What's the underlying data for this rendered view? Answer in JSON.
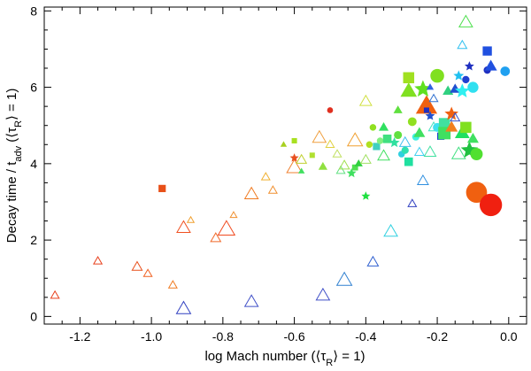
{
  "chart_data": {
    "type": "scatter",
    "title": "",
    "xlabel": "log Mach number (⟨τ_R⟩ = 1)",
    "ylabel": "Decay time / t_adv (⟨τ_R⟩ = 1)",
    "xlim": [
      -1.3,
      0.05
    ],
    "ylim": [
      -0.2,
      8.1
    ],
    "xticks": [
      -1.2,
      -1.0,
      -0.8,
      -0.6,
      -0.4,
      -0.2,
      0.0
    ],
    "xtick_labels": [
      "-1.2",
      "-1.0",
      "-0.8",
      "-0.6",
      "-0.4",
      "-0.2",
      "0.0"
    ],
    "yticks": [
      0,
      2,
      4,
      6,
      8
    ],
    "ytick_labels": [
      "0",
      "2",
      "4",
      "6",
      "8"
    ],
    "grid": false,
    "legend": "none",
    "marker_legend": {
      "triangle": "open triangle",
      "triangle_filled": "filled triangle",
      "square": "filled square",
      "circle": "filled circle",
      "star": "filled star"
    },
    "points": [
      {
        "x": -1.27,
        "y": 0.55,
        "shape": "triangle",
        "filled": false,
        "size": 1,
        "color": "#e8401c"
      },
      {
        "x": -1.15,
        "y": 1.45,
        "shape": "triangle",
        "filled": false,
        "size": 1,
        "color": "#e8401c"
      },
      {
        "x": -1.04,
        "y": 1.3,
        "shape": "triangle",
        "filled": false,
        "size": 1.2,
        "color": "#e8501c"
      },
      {
        "x": -1.01,
        "y": 1.12,
        "shape": "triangle",
        "filled": false,
        "size": 1,
        "color": "#f06020"
      },
      {
        "x": -0.94,
        "y": 0.82,
        "shape": "triangle",
        "filled": false,
        "size": 1,
        "color": "#f07a20"
      },
      {
        "x": -0.91,
        "y": 2.32,
        "shape": "triangle",
        "filled": false,
        "size": 1.6,
        "color": "#f05020"
      },
      {
        "x": -0.91,
        "y": 0.2,
        "shape": "triangle",
        "filled": false,
        "size": 1.7,
        "color": "#3040c0"
      },
      {
        "x": -0.97,
        "y": 3.35,
        "shape": "square",
        "filled": true,
        "size": 1,
        "color": "#e85018"
      },
      {
        "x": -0.89,
        "y": 2.52,
        "shape": "triangle",
        "filled": false,
        "size": 0.8,
        "color": "#f0a030"
      },
      {
        "x": -0.82,
        "y": 2.05,
        "shape": "triangle",
        "filled": false,
        "size": 1.2,
        "color": "#f06828"
      },
      {
        "x": -0.79,
        "y": 2.28,
        "shape": "triangle",
        "filled": false,
        "size": 2.0,
        "color": "#f04a20"
      },
      {
        "x": -0.77,
        "y": 2.65,
        "shape": "triangle",
        "filled": false,
        "size": 0.8,
        "color": "#f09030"
      },
      {
        "x": -0.72,
        "y": 3.2,
        "shape": "triangle",
        "filled": false,
        "size": 1.6,
        "color": "#f07a20"
      },
      {
        "x": -0.72,
        "y": 0.38,
        "shape": "triangle",
        "filled": false,
        "size": 1.6,
        "color": "#4050c8"
      },
      {
        "x": -0.68,
        "y": 3.65,
        "shape": "triangle",
        "filled": false,
        "size": 1,
        "color": "#f0b030"
      },
      {
        "x": -0.66,
        "y": 3.3,
        "shape": "triangle",
        "filled": false,
        "size": 1,
        "color": "#f09030"
      },
      {
        "x": -0.63,
        "y": 4.5,
        "shape": "triangle",
        "filled": true,
        "size": 0.6,
        "color": "#a8d020"
      },
      {
        "x": -0.6,
        "y": 3.9,
        "shape": "triangle",
        "filled": false,
        "size": 1.8,
        "color": "#f08030"
      },
      {
        "x": -0.6,
        "y": 4.15,
        "shape": "star",
        "filled": true,
        "size": 0.8,
        "color": "#e85020"
      },
      {
        "x": -0.6,
        "y": 4.6,
        "shape": "square",
        "filled": true,
        "size": 0.7,
        "color": "#a8e020"
      },
      {
        "x": -0.58,
        "y": 3.8,
        "shape": "triangle",
        "filled": true,
        "size": 0.6,
        "color": "#40e060"
      },
      {
        "x": -0.58,
        "y": 4.1,
        "shape": "triangle",
        "filled": false,
        "size": 1.2,
        "color": "#c0d030"
      },
      {
        "x": -0.55,
        "y": 4.22,
        "shape": "square",
        "filled": true,
        "size": 0.7,
        "color": "#b0e030"
      },
      {
        "x": -0.53,
        "y": 4.68,
        "shape": "triangle",
        "filled": false,
        "size": 1.6,
        "color": "#f0a040"
      },
      {
        "x": -0.52,
        "y": 3.92,
        "shape": "triangle",
        "filled": true,
        "size": 0.9,
        "color": "#90e040"
      },
      {
        "x": -0.52,
        "y": 0.55,
        "shape": "triangle",
        "filled": false,
        "size": 1.6,
        "color": "#4050c8"
      },
      {
        "x": -0.5,
        "y": 5.4,
        "shape": "circle",
        "filled": true,
        "size": 0.7,
        "color": "#e03020"
      },
      {
        "x": -0.5,
        "y": 4.5,
        "shape": "triangle",
        "filled": false,
        "size": 1,
        "color": "#e0d040"
      },
      {
        "x": -0.48,
        "y": 4.25,
        "shape": "triangle",
        "filled": false,
        "size": 1,
        "color": "#c0e060"
      },
      {
        "x": -0.47,
        "y": 3.82,
        "shape": "triangle",
        "filled": false,
        "size": 1,
        "color": "#60e080"
      },
      {
        "x": -0.46,
        "y": 3.95,
        "shape": "triangle",
        "filled": false,
        "size": 1.2,
        "color": "#a0e050"
      },
      {
        "x": -0.46,
        "y": 0.95,
        "shape": "triangle",
        "filled": false,
        "size": 1.8,
        "color": "#3080d0"
      },
      {
        "x": -0.44,
        "y": 3.75,
        "shape": "star",
        "filled": true,
        "size": 0.9,
        "color": "#40e060"
      },
      {
        "x": -0.43,
        "y": 3.9,
        "shape": "square",
        "filled": true,
        "size": 0.8,
        "color": "#50e050"
      },
      {
        "x": -0.43,
        "y": 4.6,
        "shape": "triangle",
        "filled": false,
        "size": 1.8,
        "color": "#f0a030"
      },
      {
        "x": -0.42,
        "y": 4.0,
        "shape": "triangle",
        "filled": true,
        "size": 0.8,
        "color": "#30d040"
      },
      {
        "x": -0.4,
        "y": 5.63,
        "shape": "triangle",
        "filled": false,
        "size": 1.4,
        "color": "#d0e040"
      },
      {
        "x": -0.4,
        "y": 4.1,
        "shape": "triangle",
        "filled": false,
        "size": 1.2,
        "color": "#a0e060"
      },
      {
        "x": -0.4,
        "y": 3.15,
        "shape": "star",
        "filled": true,
        "size": 0.8,
        "color": "#20e040"
      },
      {
        "x": -0.39,
        "y": 4.5,
        "shape": "circle",
        "filled": true,
        "size": 0.8,
        "color": "#b0e020"
      },
      {
        "x": -0.38,
        "y": 4.95,
        "shape": "circle",
        "filled": true,
        "size": 0.8,
        "color": "#90e020"
      },
      {
        "x": -0.38,
        "y": 1.42,
        "shape": "triangle",
        "filled": false,
        "size": 1.3,
        "color": "#3060d0"
      },
      {
        "x": -0.37,
        "y": 4.45,
        "shape": "square",
        "filled": true,
        "size": 1.0,
        "color": "#40d0c0"
      },
      {
        "x": -0.36,
        "y": 4.6,
        "shape": "circle",
        "filled": true,
        "size": 0.8,
        "color": "#80f080"
      },
      {
        "x": -0.35,
        "y": 4.2,
        "shape": "triangle",
        "filled": false,
        "size": 1.4,
        "color": "#40e060"
      },
      {
        "x": -0.35,
        "y": 4.95,
        "shape": "triangle",
        "filled": true,
        "size": 1.0,
        "color": "#30e060"
      },
      {
        "x": -0.34,
        "y": 4.65,
        "shape": "square",
        "filled": true,
        "size": 1.2,
        "color": "#40e080"
      },
      {
        "x": -0.33,
        "y": 2.22,
        "shape": "triangle",
        "filled": false,
        "size": 1.6,
        "color": "#30d0e0"
      },
      {
        "x": -0.32,
        "y": 4.55,
        "shape": "star",
        "filled": true,
        "size": 1.0,
        "color": "#30e0a0"
      },
      {
        "x": -0.31,
        "y": 4.75,
        "shape": "circle",
        "filled": true,
        "size": 1.0,
        "color": "#60e040"
      },
      {
        "x": -0.31,
        "y": 5.4,
        "shape": "triangle",
        "filled": true,
        "size": 0.9,
        "color": "#60e040"
      },
      {
        "x": -0.3,
        "y": 4.25,
        "shape": "circle",
        "filled": true,
        "size": 0.8,
        "color": "#30d0e0"
      },
      {
        "x": -0.29,
        "y": 4.55,
        "shape": "triangle",
        "filled": false,
        "size": 1.3,
        "color": "#40c0f0"
      },
      {
        "x": -0.29,
        "y": 4.35,
        "shape": "circle",
        "filled": true,
        "size": 0.9,
        "color": "#30e0b0"
      },
      {
        "x": -0.28,
        "y": 4.05,
        "shape": "square",
        "filled": true,
        "size": 1.2,
        "color": "#20e0a0"
      },
      {
        "x": -0.28,
        "y": 5.9,
        "shape": "triangle",
        "filled": true,
        "size": 1.8,
        "color": "#80e020"
      },
      {
        "x": -0.28,
        "y": 6.25,
        "shape": "square",
        "filled": true,
        "size": 1.6,
        "color": "#a0e020"
      },
      {
        "x": -0.27,
        "y": 5.1,
        "shape": "circle",
        "filled": true,
        "size": 1.1,
        "color": "#90e020"
      },
      {
        "x": -0.27,
        "y": 2.95,
        "shape": "triangle",
        "filled": false,
        "size": 1,
        "color": "#3040c0"
      },
      {
        "x": -0.26,
        "y": 4.7,
        "shape": "circle",
        "filled": true,
        "size": 0.9,
        "color": "#40f0e0"
      },
      {
        "x": -0.25,
        "y": 4.3,
        "shape": "triangle",
        "filled": false,
        "size": 1.1,
        "color": "#40d0f0"
      },
      {
        "x": -0.25,
        "y": 4.8,
        "shape": "triangle",
        "filled": true,
        "size": 1.2,
        "color": "#40e060"
      },
      {
        "x": -0.24,
        "y": 3.55,
        "shape": "triangle",
        "filled": false,
        "size": 1.3,
        "color": "#3090e0"
      },
      {
        "x": -0.24,
        "y": 5.95,
        "shape": "star",
        "filled": true,
        "size": 1.8,
        "color": "#60e020"
      },
      {
        "x": -0.23,
        "y": 5.5,
        "shape": "triangle",
        "filled": true,
        "size": 2.4,
        "color": "#f06010"
      },
      {
        "x": -0.23,
        "y": 5.4,
        "shape": "square",
        "filled": true,
        "size": 0.7,
        "color": "#2030c0"
      },
      {
        "x": -0.22,
        "y": 5.25,
        "shape": "star",
        "filled": true,
        "size": 0.9,
        "color": "#2050d0"
      },
      {
        "x": -0.22,
        "y": 6.0,
        "shape": "triangle",
        "filled": true,
        "size": 0.7,
        "color": "#3060e0"
      },
      {
        "x": -0.22,
        "y": 4.3,
        "shape": "triangle",
        "filled": false,
        "size": 1.4,
        "color": "#40e0a0"
      },
      {
        "x": -0.21,
        "y": 4.95,
        "shape": "triangle",
        "filled": false,
        "size": 1.2,
        "color": "#40e0c0"
      },
      {
        "x": -0.21,
        "y": 5.7,
        "shape": "triangle",
        "filled": false,
        "size": 1.0,
        "color": "#3070d0"
      },
      {
        "x": -0.2,
        "y": 6.3,
        "shape": "circle",
        "filled": true,
        "size": 1.8,
        "color": "#80e020"
      },
      {
        "x": -0.2,
        "y": 4.95,
        "shape": "circle",
        "filled": true,
        "size": 1.1,
        "color": "#40e0f0"
      },
      {
        "x": -0.19,
        "y": 4.72,
        "shape": "square",
        "filled": true,
        "size": 1.0,
        "color": "#2040d0"
      },
      {
        "x": -0.18,
        "y": 5.05,
        "shape": "square",
        "filled": true,
        "size": 1.6,
        "color": "#40e0a0"
      },
      {
        "x": -0.18,
        "y": 4.8,
        "shape": "square",
        "filled": true,
        "size": 1.8,
        "color": "#40e060"
      },
      {
        "x": -0.17,
        "y": 5.9,
        "shape": "triangle",
        "filled": true,
        "size": 1.1,
        "color": "#30d080"
      },
      {
        "x": -0.16,
        "y": 5.3,
        "shape": "star",
        "filled": true,
        "size": 1.4,
        "color": "#f06010"
      },
      {
        "x": -0.16,
        "y": 4.95,
        "shape": "triangle",
        "filled": true,
        "size": 1.3,
        "color": "#f08020"
      },
      {
        "x": -0.15,
        "y": 5.95,
        "shape": "triangle",
        "filled": true,
        "size": 1.1,
        "color": "#2050d0"
      },
      {
        "x": -0.15,
        "y": 5.2,
        "shape": "triangle",
        "filled": false,
        "size": 1.1,
        "color": "#3050d0"
      },
      {
        "x": -0.14,
        "y": 6.3,
        "shape": "star",
        "filled": true,
        "size": 1.0,
        "color": "#20c0f0"
      },
      {
        "x": -0.14,
        "y": 4.25,
        "shape": "triangle",
        "filled": false,
        "size": 1.6,
        "color": "#40e080"
      },
      {
        "x": -0.13,
        "y": 7.1,
        "shape": "triangle",
        "filled": false,
        "size": 1.1,
        "color": "#30c0f0"
      },
      {
        "x": -0.13,
        "y": 5.9,
        "shape": "star",
        "filled": true,
        "size": 1.5,
        "color": "#30f0f0"
      },
      {
        "x": -0.13,
        "y": 4.8,
        "shape": "triangle",
        "filled": true,
        "size": 1.6,
        "color": "#20e060"
      },
      {
        "x": -0.12,
        "y": 7.7,
        "shape": "triangle",
        "filled": false,
        "size": 1.6,
        "color": "#50e050"
      },
      {
        "x": -0.12,
        "y": 6.2,
        "shape": "circle",
        "filled": true,
        "size": 0.9,
        "color": "#2040d0"
      },
      {
        "x": -0.12,
        "y": 4.95,
        "shape": "square",
        "filled": true,
        "size": 1.6,
        "color": "#80e020"
      },
      {
        "x": -0.11,
        "y": 4.35,
        "shape": "star",
        "filled": true,
        "size": 1.8,
        "color": "#20c040"
      },
      {
        "x": -0.11,
        "y": 6.55,
        "shape": "star",
        "filled": true,
        "size": 0.9,
        "color": "#2030c0"
      },
      {
        "x": -0.1,
        "y": 6.0,
        "shape": "circle",
        "filled": true,
        "size": 1.4,
        "color": "#30e0f0"
      },
      {
        "x": -0.1,
        "y": 4.65,
        "shape": "triangle",
        "filled": true,
        "size": 1.2,
        "color": "#40e060"
      },
      {
        "x": -0.09,
        "y": 4.25,
        "shape": "circle",
        "filled": true,
        "size": 1.6,
        "color": "#50e030"
      },
      {
        "x": -0.09,
        "y": 3.25,
        "shape": "circle",
        "filled": true,
        "size": 2.8,
        "color": "#f06010"
      },
      {
        "x": -0.06,
        "y": 6.95,
        "shape": "square",
        "filled": true,
        "size": 1.3,
        "color": "#2050e0"
      },
      {
        "x": -0.06,
        "y": 6.45,
        "shape": "circle",
        "filled": true,
        "size": 0.9,
        "color": "#2030c0"
      },
      {
        "x": -0.05,
        "y": 6.55,
        "shape": "triangle",
        "filled": true,
        "size": 1.3,
        "color": "#2050e0"
      },
      {
        "x": -0.05,
        "y": 2.92,
        "shape": "circle",
        "filled": true,
        "size": 3.0,
        "color": "#f02010"
      },
      {
        "x": -0.01,
        "y": 6.42,
        "shape": "circle",
        "filled": true,
        "size": 1.2,
        "color": "#20a0f0"
      }
    ]
  }
}
